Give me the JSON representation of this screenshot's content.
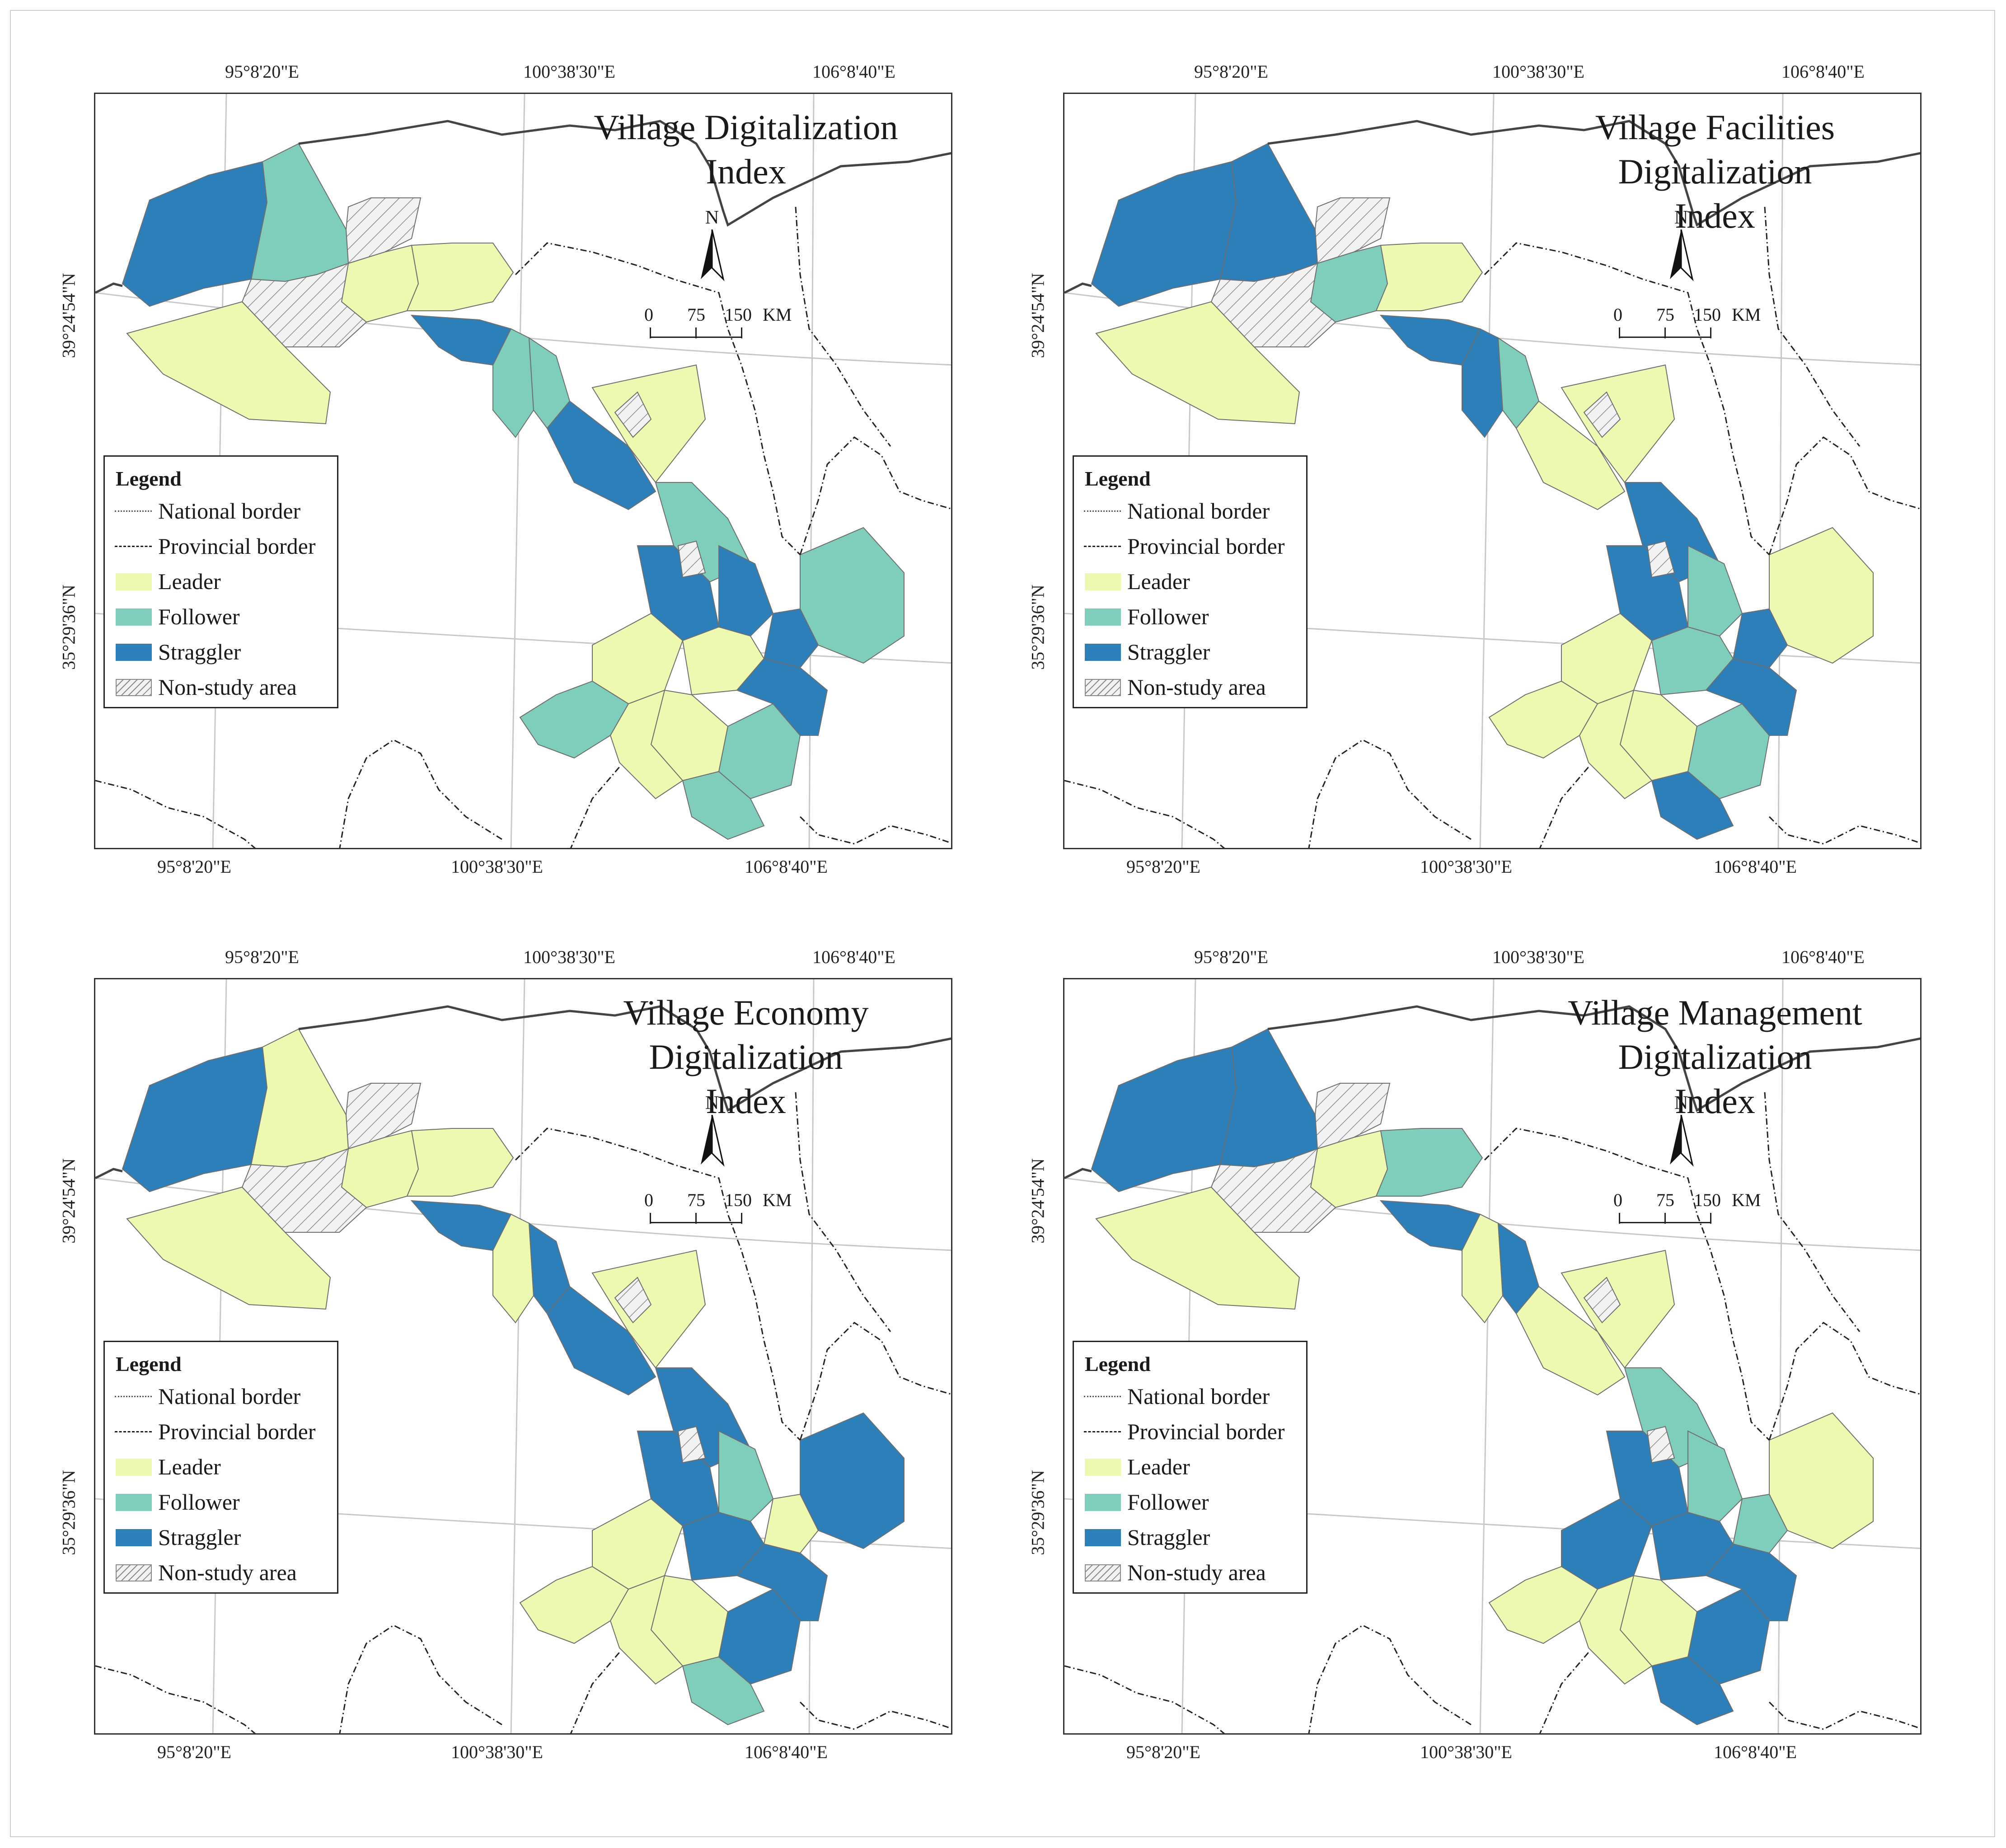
{
  "colors": {
    "leader": "#edf8b1",
    "follower": "#7fcdbb",
    "straggler": "#2c7fb8",
    "non_study": "#f2f2f2",
    "border": "#555555",
    "graticule": "#c8c8c8"
  },
  "coordinates": {
    "lon_top": [
      "95°8'20\"E",
      "100°38'30\"E",
      "106°8'40\"E"
    ],
    "lon_bottom": [
      "95°8'20\"E",
      "100°38'30\"E",
      "106°8'40\"E"
    ],
    "lat_left": [
      "39°24'54\"N",
      "35°29'36\"N"
    ],
    "lat_right": [
      "39°24'54\"N",
      "35°29'36\"N"
    ]
  },
  "north_arrow": {
    "label": "N"
  },
  "scale_bar": {
    "ticks": [
      "0",
      "75",
      "150"
    ],
    "unit": "KM"
  },
  "legend": {
    "title": "Legend",
    "items": [
      {
        "label": "National border",
        "symbol": "line-dotted"
      },
      {
        "label": "Provincial border",
        "symbol": "line-dashdot"
      },
      {
        "label": "Leader",
        "symbol": "fill-leader"
      },
      {
        "label": "Follower",
        "symbol": "fill-follower"
      },
      {
        "label": "Straggler",
        "symbol": "fill-straggler"
      },
      {
        "label": "Non-study area",
        "symbol": "hatch"
      }
    ]
  },
  "panels": [
    {
      "title_line1": "Village Digitalization",
      "title_line2": "Index"
    },
    {
      "title_line1": "Village Facilities Digitalization",
      "title_line2": "Index"
    },
    {
      "title_line1": "Village Economy Digitalization",
      "title_line2": "Index"
    },
    {
      "title_line1": "Village Management Digitalization",
      "title_line2": "Index"
    }
  ],
  "map_regions": {
    "panel_classes": [
      [
        "straggler",
        "follower",
        "leader",
        "leader",
        "leader",
        "straggler",
        "follower",
        "follower",
        "straggler",
        "leader",
        "follower",
        "straggler",
        "straggler",
        "follower",
        "straggler",
        "leader",
        "leader",
        "follower",
        "leader",
        "follower",
        "straggler",
        "follower",
        "leader"
      ],
      [
        "straggler",
        "straggler",
        "follower",
        "leader",
        "leader",
        "straggler",
        "straggler",
        "follower",
        "leader",
        "leader",
        "straggler",
        "straggler",
        "follower",
        "leader",
        "straggler",
        "leader",
        "follower",
        "leader",
        "leader",
        "follower",
        "straggler",
        "straggler",
        "leader"
      ],
      [
        "straggler",
        "leader",
        "leader",
        "leader",
        "leader",
        "straggler",
        "leader",
        "straggler",
        "straggler",
        "leader",
        "straggler",
        "straggler",
        "follower",
        "straggler",
        "leader",
        "leader",
        "straggler",
        "leader",
        "leader",
        "straggler",
        "straggler",
        "follower",
        "leader"
      ],
      [
        "straggler",
        "straggler",
        "leader",
        "follower",
        "leader",
        "straggler",
        "leader",
        "straggler",
        "leader",
        "leader",
        "follower",
        "straggler",
        "follower",
        "leader",
        "follower",
        "straggler",
        "straggler",
        "leader",
        "leader",
        "straggler",
        "straggler",
        "straggler",
        "leader"
      ]
    ]
  }
}
